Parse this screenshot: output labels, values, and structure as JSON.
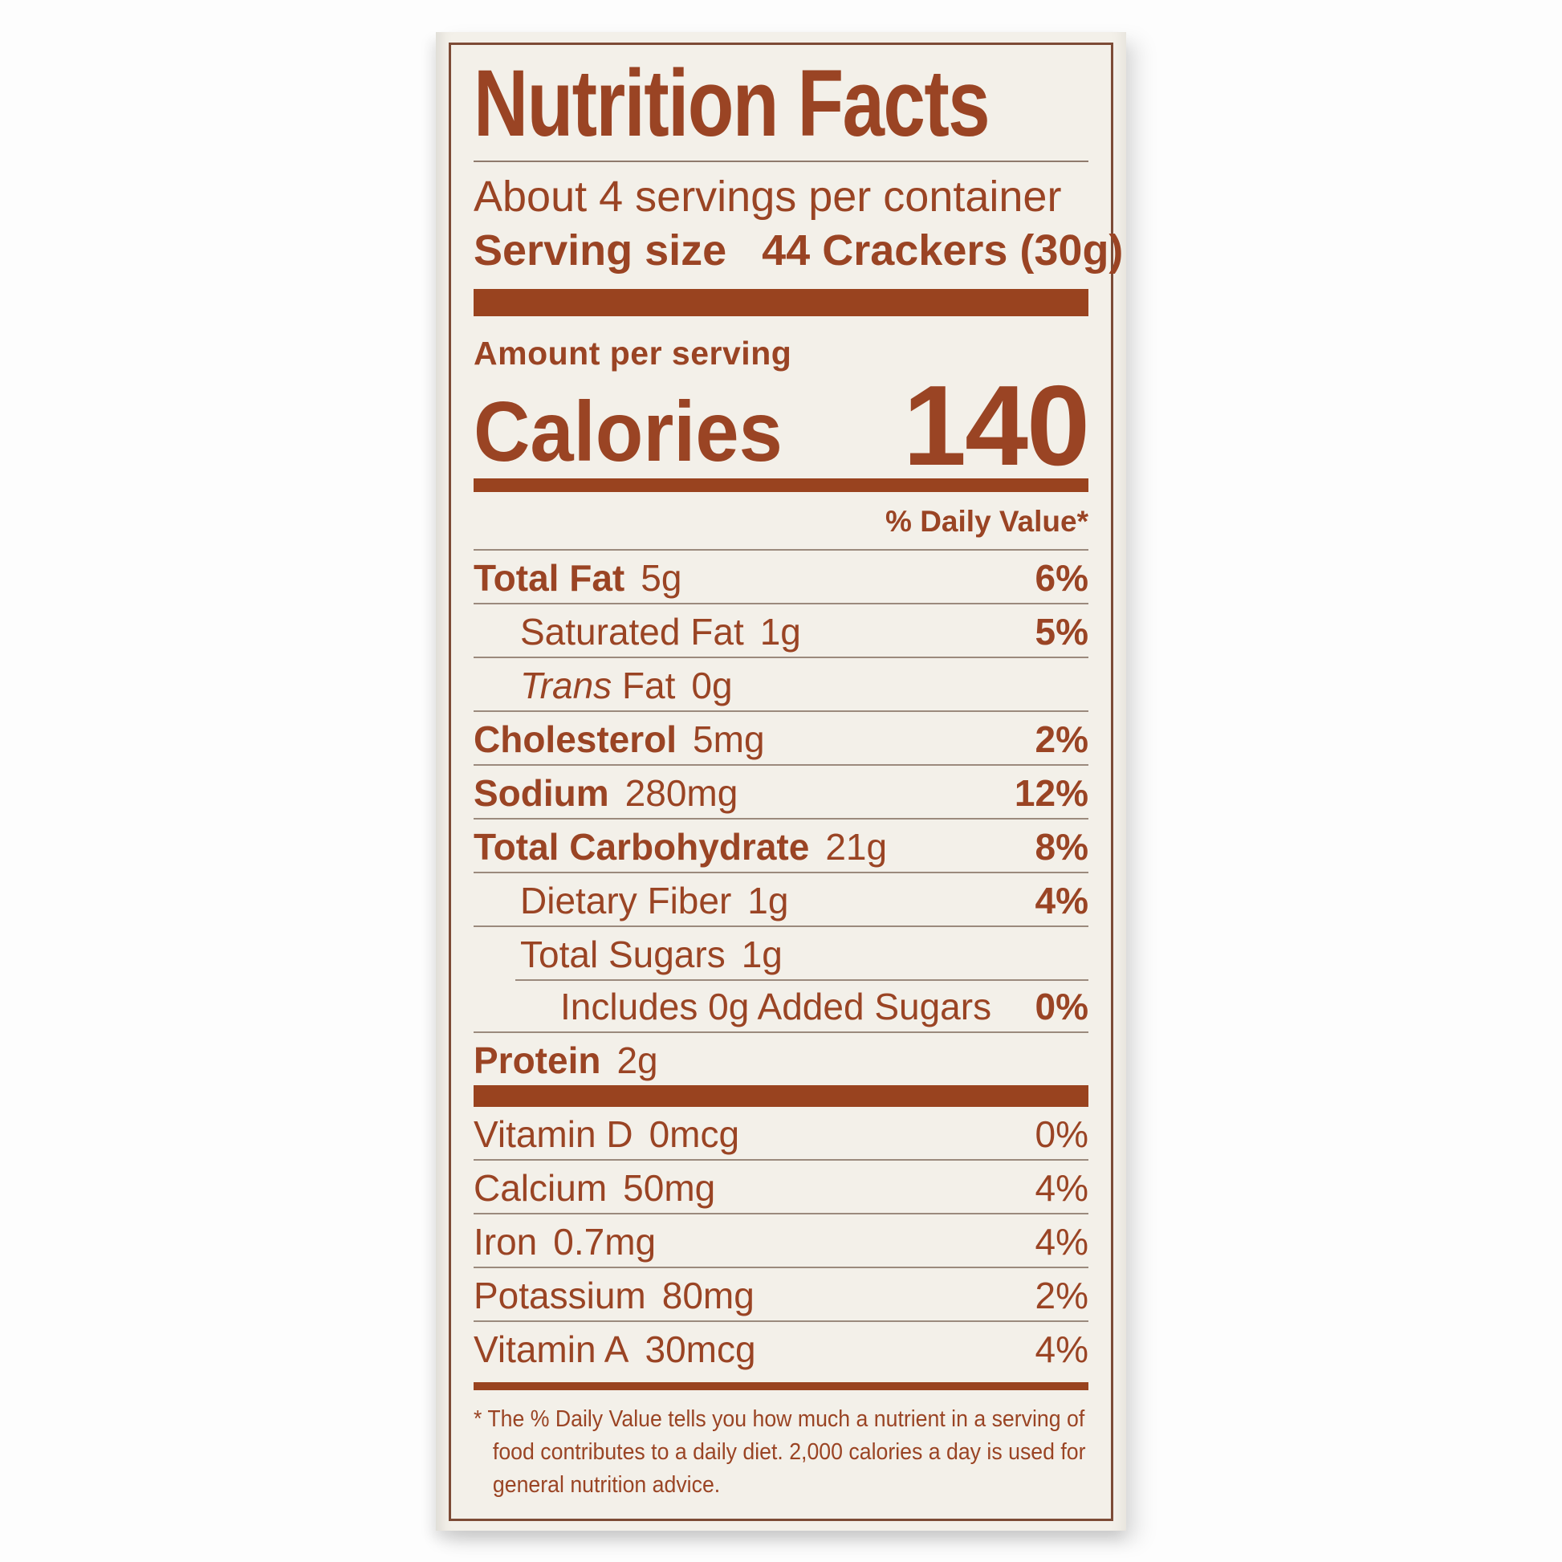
{
  "label": {
    "title": "Nutrition Facts",
    "servings_per_container": "About 4 servings per container",
    "serving_size_label": "Serving size",
    "serving_size_value": "44 Crackers (30g)",
    "amount_per_serving": "Amount per serving",
    "calories_label": "Calories",
    "calories_value": "140",
    "daily_value_header": "% Daily Value*",
    "nutrients": [
      {
        "name": "Total Fat",
        "amount": "5g",
        "dv": "6%",
        "style": "main"
      },
      {
        "name": "Saturated Fat",
        "amount": "1g",
        "dv": "5%",
        "style": "sub"
      },
      {
        "name": "Trans Fat",
        "amount": "0g",
        "dv": "",
        "style": "sub",
        "italic_words": 1
      },
      {
        "name": "Cholesterol",
        "amount": "5mg",
        "dv": "2%",
        "style": "main"
      },
      {
        "name": "Sodium",
        "amount": "280mg",
        "dv": "12%",
        "style": "main"
      },
      {
        "name": "Total Carbohydrate",
        "amount": "21g",
        "dv": "8%",
        "style": "main"
      },
      {
        "name": "Dietary Fiber",
        "amount": "1g",
        "dv": "4%",
        "style": "sub"
      },
      {
        "name": "Total Sugars",
        "amount": "1g",
        "dv": "",
        "style": "sub"
      },
      {
        "name": "Includes 0g Added Sugars",
        "amount": "",
        "dv": "0%",
        "style": "sub2",
        "indented_rule": true
      },
      {
        "name": "Protein",
        "amount": "2g",
        "dv": "",
        "style": "main"
      }
    ],
    "vitamins": [
      {
        "name": "Vitamin D",
        "amount": "0mcg",
        "dv": "0%"
      },
      {
        "name": "Calcium",
        "amount": "50mg",
        "dv": "4%"
      },
      {
        "name": "Iron",
        "amount": "0.7mg",
        "dv": "4%"
      },
      {
        "name": "Potassium",
        "amount": "80mg",
        "dv": "2%"
      },
      {
        "name": "Vitamin A",
        "amount": "30mcg",
        "dv": "4%"
      }
    ],
    "footnote": "* The % Daily Value tells you how much a nutrient in a serving of food contributes to a daily diet. 2,000 calories a day is used for general nutrition advice."
  },
  "colors": {
    "text_brown": "#9a4424",
    "bar_brown": "#99431f",
    "hairline": "#9b8a7d",
    "box_border": "#7d4b36",
    "label_background": "#f3f0e9",
    "page_background": "#fdfdfd"
  }
}
